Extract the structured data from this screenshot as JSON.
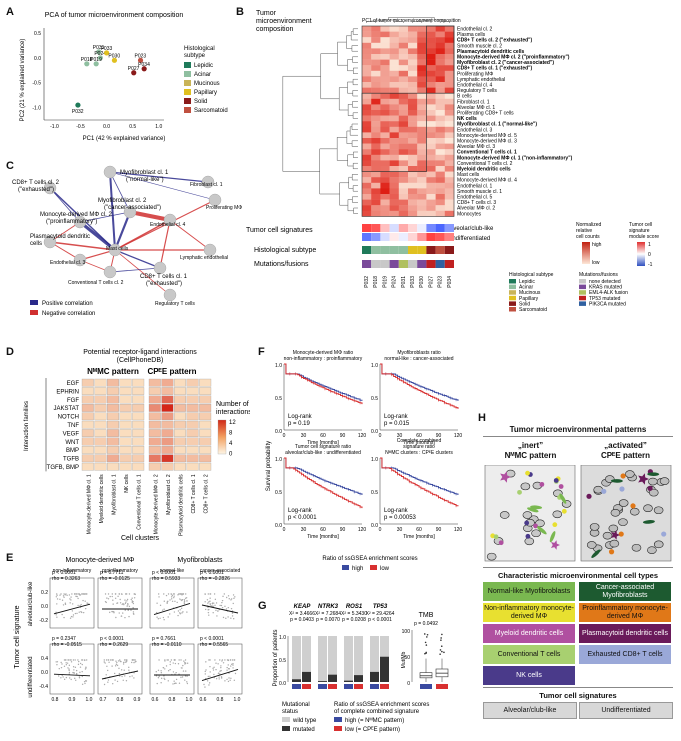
{
  "panels": {
    "A": "A",
    "B": "B",
    "C": "C",
    "D": "D",
    "E": "E",
    "F": "F",
    "G": "G",
    "H": "H"
  },
  "panelA": {
    "title": "PCA of tumor microenvironment composition",
    "xlabel": "PC1 (42 % explained variance)",
    "ylabel": "PC2 (21 % explained variance)",
    "legend_title": [
      "Histological",
      "subtype"
    ],
    "subtypes": [
      {
        "name": "Lepidic",
        "color": "#1f7a5a"
      },
      {
        "name": "Acinar",
        "color": "#8fbfa0"
      },
      {
        "name": "Mucinous",
        "color": "#c9b458"
      },
      {
        "name": "Papillary",
        "color": "#e0c020"
      },
      {
        "name": "Solid",
        "color": "#8a1a1a"
      },
      {
        "name": "Sarcomatoid",
        "color": "#c05040"
      }
    ],
    "xticks": [
      "-1.0",
      "-0.5",
      "0.0",
      "0.5",
      "1.0"
    ],
    "yticks": [
      "0.5",
      "0.0",
      "-0.5",
      "-1.0"
    ]
  },
  "chart_data": [
    {
      "type": "scatter",
      "title": "PCA of tumor microenvironment composition",
      "xlabel": "PC1 (42 % explained variance)",
      "ylabel": "PC2 (21 % explained variance)",
      "xlim": [
        -1.2,
        1.1
      ],
      "ylim": [
        -1.25,
        0.6
      ],
      "points": [
        {
          "label": "P031",
          "x": -0.15,
          "y": 0.12,
          "color": "#8fbfa0"
        },
        {
          "label": "P024",
          "x": -0.12,
          "y": 0.0,
          "color": "#8fbfa0"
        },
        {
          "label": "P033",
          "x": 0.0,
          "y": 0.1,
          "color": "#e0c020"
        },
        {
          "label": "P018",
          "x": -0.38,
          "y": -0.12,
          "color": "#8fbfa0"
        },
        {
          "label": "P019",
          "x": -0.2,
          "y": -0.12,
          "color": "#8fbfa0"
        },
        {
          "label": "P030",
          "x": 0.15,
          "y": -0.05,
          "color": "#e0c020"
        },
        {
          "label": "P023",
          "x": 0.65,
          "y": -0.05,
          "color": "#c05040"
        },
        {
          "label": "P034",
          "x": 0.72,
          "y": -0.22,
          "color": "#8a1a1a"
        },
        {
          "label": "P027",
          "x": 0.52,
          "y": -0.3,
          "color": "#8a1a1a"
        },
        {
          "label": "P032",
          "x": -0.55,
          "y": -0.95,
          "color": "#1f7a5a"
        }
      ]
    }
  ],
  "panelB": {
    "title": [
      "Tumor",
      "microenvironment",
      "composition"
    ],
    "pc_label": "PC1 of tumor microenvironment composition",
    "rows": [
      {
        "label": "Endothelial cl. 2",
        "bold": false
      },
      {
        "label": "Plasma cells",
        "bold": false
      },
      {
        "label": "CD8+ T cells cl. 2 (\"exhausted\")",
        "bold": true
      },
      {
        "label": "Smooth muscle cl. 2",
        "bold": false
      },
      {
        "label": "Plasmacytoid dendritic cells",
        "bold": true
      },
      {
        "label": "Monocyte-derived MΦ cl. 2 (\"proinflammatory\")",
        "bold": true
      },
      {
        "label": "Myofibroblast cl. 2 (\"cancer-associated\")",
        "bold": true
      },
      {
        "label": "CD8+ T cells cl. 1 (\"exhausted\")",
        "bold": true
      },
      {
        "label": "Proliferating MΦ",
        "bold": false
      },
      {
        "label": "Lymphatic endothelial",
        "bold": false
      },
      {
        "label": "Endothelial cl. 4",
        "bold": false
      },
      {
        "label": "Regulatory T cells",
        "bold": false
      },
      {
        "label": "B cells",
        "bold": false
      },
      {
        "label": "Fibroblast cl. 1",
        "bold": false
      },
      {
        "label": "Alveolar MΦ cl. 1",
        "bold": false
      },
      {
        "label": "Proliferating CD8+ T cells",
        "bold": false
      },
      {
        "label": "NK cells",
        "bold": true
      },
      {
        "label": "Myofibroblast cl. 1 (\"normal-like\")",
        "bold": true
      },
      {
        "label": "Endothelial cl. 3",
        "bold": false
      },
      {
        "label": "Monocyte-derived MΦ cl. 5",
        "bold": false
      },
      {
        "label": "Monocyte-derived MΦ cl. 3",
        "bold": false
      },
      {
        "label": "Alveolar MΦ cl. 3",
        "bold": false
      },
      {
        "label": "Conventional T cells cl. 1",
        "bold": true
      },
      {
        "label": "Monocyte-derived MΦ cl. 1 (\"non-inflammatory\")",
        "bold": true
      },
      {
        "label": "Conventional T cells cl. 2",
        "bold": false
      },
      {
        "label": "Myeloid dendritic cells",
        "bold": true
      },
      {
        "label": "Mast cells",
        "bold": false
      },
      {
        "label": "Monocyte-derived MΦ cl. 4",
        "bold": false
      },
      {
        "label": "Endothelial cl. 1",
        "bold": false
      },
      {
        "label": "Smooth muscle cl. 1",
        "bold": false
      },
      {
        "label": "Endothelial cl. 5",
        "bold": false
      },
      {
        "label": "CD8+ T cells cl. 3",
        "bold": false
      },
      {
        "label": "Alveolar MΦ cl. 2",
        "bold": false
      },
      {
        "label": "Monocytes",
        "bold": false
      }
    ],
    "patients": [
      "P032",
      "P018",
      "P019",
      "P024",
      "P031",
      "P033",
      "P030",
      "P027",
      "P023",
      "P034"
    ],
    "sig_labels": [
      "Alveolar/club-like",
      "Undifferentiated"
    ],
    "tumor_sig_title": "Tumor cell signatures",
    "hist_title": "Histological subtype",
    "mut_title": "Mutations/fusions",
    "norm_legend": [
      "Normalized",
      "relative",
      "cell counts"
    ],
    "norm_high": "high",
    "norm_low": "low",
    "sig_legend": [
      "Tumor cell",
      "signature",
      "module score"
    ],
    "sig_hi": "1",
    "sig_mid": "0",
    "sig_lo": "-1",
    "hist_legend_title": "Histological subtype",
    "mut_legend_title": "Mutations/fusions",
    "mut_items": [
      {
        "name": "none detected",
        "color": "#c8c8c8"
      },
      {
        "name": "KRAS mutated",
        "color": "#7a4a9a"
      },
      {
        "name": "EML4-ALK fusion",
        "color": "#b0c060"
      },
      {
        "name": "TP53 mutated",
        "color": "#c02020"
      },
      {
        "name": "PIK3CA mutated",
        "color": "#3060a0"
      }
    ],
    "hist_row": [
      "#1f7a5a",
      "#8fbfa0",
      "#8fbfa0",
      "#8fbfa0",
      "#8fbfa0",
      "#e0c020",
      "#e0c020",
      "#8a1a1a",
      "#c05040",
      "#8a1a1a"
    ],
    "mut_row": [
      "#7a4a9a",
      "#c8c8c8",
      "#c8c8c8",
      "#7a4a9a",
      "#b0c060",
      "#c8c8c8",
      "#7a4a9a",
      "#c02020",
      "#3060a0",
      "#c02020"
    ],
    "sig_row1": [
      0.9,
      0.8,
      0.3,
      -0.2,
      0.4,
      0.2,
      -0.1,
      -0.7,
      -0.9,
      -0.6
    ],
    "sig_row2": [
      -0.8,
      -0.6,
      -0.2,
      0.1,
      -0.1,
      0.2,
      0.5,
      0.9,
      0.8,
      0.6
    ]
  },
  "panelC": {
    "nodes": [
      {
        "label": "Myofibroblast cl. 1 (\"normal-like\")"
      },
      {
        "label": "Fibroblast cl. 1"
      },
      {
        "label": "CD8+ T cells cl. 2 (\"exhausted\")"
      },
      {
        "label": "Myofibroblast cl. 2 (\"cancer-associated\")"
      },
      {
        "label": "Proliferating MΦ"
      },
      {
        "label": "Monocyte-derived MΦ cl. 2 (\"proinflammatory\")"
      },
      {
        "label": "Endothelial cl. 4"
      },
      {
        "label": "Plasmacytoid dendritic cells"
      },
      {
        "label": "Lymphatic endothelial"
      },
      {
        "label": "Mast cells"
      },
      {
        "label": "Endothelial cl. 3"
      },
      {
        "label": "CD8+ T cells cl. 1 (\"exhausted\")"
      },
      {
        "label": "Conventional T cells cl. 2"
      },
      {
        "label": "Regulatory T cells"
      }
    ],
    "legend_pos": "Positive correlation",
    "legend_neg": "Negative correlation",
    "pos_color": "#2a2a8a",
    "neg_color": "#d03030"
  },
  "panelD": {
    "title": [
      "Potential receptor-ligand interactions",
      "(CellPhoneDB)"
    ],
    "col_group1": "NᴹMC pattern",
    "col_group2": "CPᴱE pattern",
    "ylabel": "Interaction families",
    "xlabel": "Cell clusters",
    "families": [
      "EGF",
      "EPHRIN",
      "FGF",
      "JAKSTAT",
      "NOTCH",
      "TNF",
      "VEGF",
      "WNT",
      "BMP",
      "TGFB",
      "TGFB, BMP"
    ],
    "clusters": [
      "Monocyte-derived MΦ cl. 1",
      "Myeloid dendritic cells",
      "Myofibroblast cl. 1",
      "NK cells",
      "Conventional T cells cl. 1",
      "Monocyte-derived MΦ cl. 2",
      "Myofibroblast cl. 2",
      "Plasmacytoid dendritic cells",
      "CD8+ T cells cl. 1",
      "CD8+ T cells cl. 2"
    ],
    "legend_title": [
      "Number of",
      "interactions"
    ],
    "legend_ticks": [
      "12",
      "8",
      "4",
      "0"
    ],
    "matrix": [
      [
        2,
        1,
        3,
        1,
        1,
        3,
        4,
        1,
        2,
        1
      ],
      [
        1,
        1,
        2,
        1,
        1,
        2,
        3,
        1,
        1,
        1
      ],
      [
        2,
        2,
        3,
        1,
        1,
        4,
        8,
        2,
        2,
        2
      ],
      [
        3,
        2,
        3,
        2,
        2,
        6,
        12,
        3,
        3,
        3
      ],
      [
        2,
        1,
        2,
        1,
        1,
        3,
        5,
        1,
        2,
        2
      ],
      [
        1,
        1,
        2,
        1,
        1,
        3,
        3,
        2,
        2,
        1
      ],
      [
        2,
        1,
        3,
        1,
        1,
        3,
        4,
        1,
        2,
        1
      ],
      [
        2,
        2,
        3,
        1,
        1,
        4,
        5,
        2,
        2,
        2
      ],
      [
        1,
        1,
        2,
        1,
        1,
        3,
        4,
        1,
        1,
        1
      ],
      [
        2,
        2,
        4,
        2,
        2,
        7,
        11,
        3,
        3,
        3
      ],
      [
        1,
        1,
        1,
        1,
        1,
        2,
        2,
        1,
        1,
        1
      ]
    ]
  },
  "panelE": {
    "col1": "Monocyte-derived MΦ",
    "col2": "Myofibroblasts",
    "sub": [
      "non-inflammatory",
      "proinflammatory",
      "normal-like",
      "cancer-associated"
    ],
    "ylabel": "Tumor cell signature",
    "row1": "alveolar/club-like",
    "row2": "undifferentiated",
    "top_stats": [
      {
        "p": "p < 0.0001",
        "rho": "rho = 0.3263"
      },
      {
        "p": "p = 0.7711",
        "rho": "rho = -0.0125"
      },
      {
        "p": "p < 0.0001",
        "rho": "rho = 0.5933"
      },
      {
        "p": "p < 0.0001",
        "rho": "rho = -0.2826"
      }
    ],
    "bot_stats": [
      {
        "p": "p = 0.2347",
        "rho": "rho = -0.0515"
      },
      {
        "p": "p < 0.0001",
        "rho": "rho = 0.2629"
      },
      {
        "p": "p = 0.7661",
        "rho": "rho = -0.0110"
      },
      {
        "p": "p < 0.0001",
        "rho": "rho = 0.5565"
      }
    ],
    "xticks": [
      [
        "0.8",
        "0.9",
        "1.0"
      ],
      [
        "0.7",
        "0.8",
        "0.9"
      ],
      [
        "0.6",
        "0.8",
        "1.0"
      ],
      [
        "0.6",
        "0.8",
        "1.0"
      ]
    ],
    "yticks_top": [
      "0.2",
      "0.0",
      "-0.2"
    ],
    "yticks_bot": [
      "0.4",
      "0.0",
      "-0.4"
    ],
    "slopes_top": [
      0.6,
      0.0,
      0.7,
      -0.5
    ],
    "slopes_bot": [
      -0.1,
      0.5,
      0.0,
      0.7
    ]
  },
  "panelF": {
    "plots": [
      {
        "title": [
          "Monocyte-derived MΦ ratio",
          "non-inflammatory : proinflammatory"
        ],
        "stat": [
          "Log-rank",
          "p = 0.19"
        ]
      },
      {
        "title": [
          "Myofibroblasts ratio",
          "normal-like : cancer-associated"
        ],
        "stat": [
          "Log-rank",
          "p = 0.015"
        ]
      },
      {
        "title": [
          "Tumor cell signature ratio",
          "alveolar/club-like : undifferentiated"
        ],
        "stat": [
          "Log-rank",
          "p < 0.0001"
        ]
      },
      {
        "title": [
          "Complete combined",
          "signature ratio",
          "NᴹMC clusters : CPᴱE clusters"
        ],
        "stat": [
          "Log-rank",
          "p = 0.00053"
        ]
      }
    ],
    "ylabel": "Survival probability",
    "xlabel": "Time [months]",
    "xticks": [
      "0",
      "30",
      "60",
      "90",
      "120"
    ],
    "yticks": [
      "1.0",
      "0.5",
      "0.0"
    ],
    "legend_title": "Ratio of ssGSEA enrichment scores",
    "legend_high": "high",
    "legend_low": "low",
    "high_color": "#3a4aa0",
    "low_color": "#d83030",
    "gaps": [
      0.05,
      0.12,
      0.2,
      0.18
    ]
  },
  "panelG": {
    "genes": [
      "KEAP",
      "NTRK3",
      "ROS1",
      "TP53"
    ],
    "stats": [
      [
        "X² = 3.4666",
        "p = 0.0403"
      ],
      [
        "X² = 7.2684",
        "p = 0.0070"
      ],
      [
        "X² = 5.3430",
        "p = 0.0208"
      ],
      [
        "X² = 29.4264",
        "p < 0.0001"
      ]
    ],
    "ylabel": "Proportion of patients",
    "yticks": [
      "1.0",
      "0.5",
      "0.0"
    ],
    "mutated_fraction": [
      [
        0.06,
        0.22
      ],
      [
        0.02,
        0.16
      ],
      [
        0.03,
        0.15
      ],
      [
        0.22,
        0.55
      ]
    ],
    "tmb_title": "TMB",
    "tmb_stat": "p = 0.0492",
    "tmb_ylabel": "Mut/Mb",
    "tmb_yticks": [
      "100",
      "50",
      "0"
    ],
    "mut_status_title": [
      "Mutational",
      "status"
    ],
    "wild_type": "wild type",
    "mutated": "mutated",
    "ratio_title": [
      "Ratio of ssGSEA enrichment scores",
      "of complete combined signature"
    ],
    "ratio_high": "high (= NᴹMC pattern)",
    "ratio_low": "low (= CPᴱE pattern)"
  },
  "panelH": {
    "title": "Tumor microenvironmental patterns",
    "inert": [
      "„inert”",
      "NᴹMC pattern"
    ],
    "activated": [
      "„activated”",
      "CPᴱE pattern"
    ],
    "types_title": "Characteristic microenvironmental cell types",
    "left": [
      {
        "label": "Normal-like Myofibroblasts",
        "color": "#7ab850",
        "text": "#111111"
      },
      {
        "label": "Non-inflammatory monocyte-derived MΦ",
        "color": "#e8e030",
        "text": "#111111"
      },
      {
        "label": "Myeloid dendritic cells",
        "color": "#b050a0",
        "text": "#ffffff"
      },
      {
        "label": "Conventional T cells",
        "color": "#a8d070",
        "text": "#111111"
      },
      {
        "label": "NK cells",
        "color": "#4a3a8a",
        "text": "#ffffff"
      }
    ],
    "right": [
      {
        "label": "Cancer-associated Myofibroblasts",
        "color": "#1d5a30",
        "text": "#ffffff"
      },
      {
        "label": "Proinflammatory monocyte-derived MΦ",
        "color": "#e07818",
        "text": "#111111"
      },
      {
        "label": "Plasmacytoid dendritic cells",
        "color": "#6a1a5a",
        "text": "#ffffff"
      },
      {
        "label": "Exhausted CD8+ T cells",
        "color": "#9aa8d8",
        "text": "#111111"
      }
    ],
    "sig_title": "Tumor cell signatures",
    "sig_left": "Alveolar/club-like",
    "sig_right": "Undifferentiated"
  }
}
